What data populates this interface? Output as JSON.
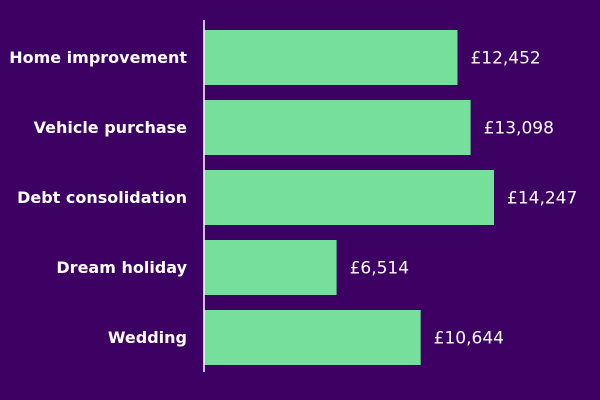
{
  "chart_data": {
    "type": "bar",
    "orientation": "horizontal",
    "categories": [
      "Home improvement",
      "Vehicle purchase",
      "Debt consolidation",
      "Dream holiday",
      "Wedding"
    ],
    "values": [
      12452,
      13098,
      14247,
      6514,
      10644
    ],
    "value_labels": [
      "£12,452",
      "£13,098",
      "£14,247",
      "£6,514",
      "£10,644"
    ],
    "color": "#77df9c"
  }
}
